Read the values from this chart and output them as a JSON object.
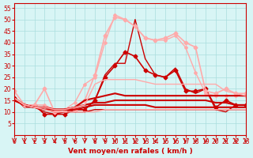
{
  "bg_color": "#d8f5f5",
  "grid_color": "#aadddd",
  "xlabel": "Vent moyen/en rafales ( km/h )",
  "xlabel_color": "#cc0000",
  "tick_color": "#cc0000",
  "xlim": [
    0,
    23
  ],
  "ylim": [
    0,
    57
  ],
  "yticks": [
    5,
    10,
    15,
    20,
    25,
    30,
    35,
    40,
    45,
    50,
    55
  ],
  "xticks": [
    0,
    1,
    2,
    3,
    4,
    5,
    6,
    7,
    8,
    9,
    10,
    11,
    12,
    13,
    14,
    15,
    16,
    17,
    18,
    19,
    20,
    21,
    22,
    23
  ],
  "lines": [
    {
      "x": [
        0,
        1,
        2,
        3,
        4,
        5,
        6,
        7,
        8,
        9,
        10,
        11,
        12,
        13,
        14,
        15,
        16,
        17,
        18,
        19,
        20,
        21,
        22,
        23
      ],
      "y": [
        16,
        13,
        13,
        9,
        9,
        9,
        11,
        11,
        15,
        25,
        30,
        36,
        34,
        28,
        26,
        25,
        28,
        19,
        19,
        20,
        12,
        15,
        13,
        13
      ],
      "color": "#cc0000",
      "lw": 1.2,
      "marker": "D",
      "ms": 2.5
    },
    {
      "x": [
        0,
        1,
        2,
        3,
        4,
        5,
        6,
        7,
        8,
        9,
        10,
        11,
        12,
        13,
        14,
        15,
        16,
        17,
        18,
        19,
        20,
        21,
        22,
        23
      ],
      "y": [
        16,
        12,
        12,
        10,
        9,
        10,
        11,
        11,
        15,
        26,
        31,
        31,
        50,
        33,
        26,
        25,
        29,
        20,
        18,
        20,
        11,
        10,
        13,
        13
      ],
      "color": "#cc0000",
      "lw": 1.0,
      "marker": null,
      "ms": 0
    },
    {
      "x": [
        0,
        1,
        2,
        3,
        4,
        5,
        6,
        7,
        8,
        9,
        10,
        11,
        12,
        13,
        14,
        15,
        16,
        17,
        18,
        19,
        20,
        21,
        22,
        23
      ],
      "y": [
        19,
        13,
        13,
        20,
        10,
        11,
        11,
        15,
        26,
        43,
        51,
        50,
        47,
        42,
        41,
        42,
        44,
        40,
        38,
        19,
        18,
        20,
        18,
        18
      ],
      "color": "#ffaaaa",
      "lw": 1.2,
      "marker": "D",
      "ms": 2.5
    },
    {
      "x": [
        0,
        1,
        2,
        3,
        4,
        5,
        6,
        7,
        8,
        9,
        10,
        11,
        12,
        13,
        14,
        15,
        16,
        17,
        18,
        19,
        20,
        21,
        22,
        23
      ],
      "y": [
        15,
        13,
        13,
        13,
        11,
        11,
        14,
        22,
        25,
        40,
        52,
        50,
        47,
        42,
        41,
        41,
        43,
        38,
        27,
        18,
        17,
        17,
        17,
        17
      ],
      "color": "#ffaaaa",
      "lw": 1.0,
      "marker": "D",
      "ms": 2.0
    },
    {
      "x": [
        0,
        1,
        2,
        3,
        4,
        5,
        6,
        7,
        8,
        9,
        10,
        11,
        12,
        13,
        14,
        15,
        16,
        17,
        18,
        19,
        20,
        21,
        22,
        23
      ],
      "y": [
        15,
        13,
        12,
        12,
        11,
        11,
        12,
        15,
        16,
        17,
        18,
        17,
        17,
        17,
        17,
        17,
        17,
        17,
        17,
        17,
        17,
        17,
        17,
        17
      ],
      "color": "#cc0000",
      "lw": 1.5,
      "marker": null,
      "ms": 0
    },
    {
      "x": [
        0,
        1,
        2,
        3,
        4,
        5,
        6,
        7,
        8,
        9,
        10,
        11,
        12,
        13,
        14,
        15,
        16,
        17,
        18,
        19,
        20,
        21,
        22,
        23
      ],
      "y": [
        15,
        13,
        12,
        12,
        11,
        11,
        12,
        13,
        14,
        14,
        15,
        15,
        15,
        15,
        15,
        15,
        15,
        15,
        15,
        15,
        14,
        14,
        13,
        13
      ],
      "color": "#cc0000",
      "lw": 1.5,
      "marker": null,
      "ms": 0
    },
    {
      "x": [
        0,
        1,
        2,
        3,
        4,
        5,
        6,
        7,
        8,
        9,
        10,
        11,
        12,
        13,
        14,
        15,
        16,
        17,
        18,
        19,
        20,
        21,
        22,
        23
      ],
      "y": [
        16,
        13,
        12,
        11,
        11,
        11,
        11,
        12,
        13,
        13,
        13,
        13,
        13,
        13,
        12,
        12,
        12,
        12,
        12,
        12,
        12,
        12,
        12,
        12
      ],
      "color": "#cc0000",
      "lw": 1.5,
      "marker": null,
      "ms": 0
    },
    {
      "x": [
        0,
        1,
        2,
        3,
        4,
        5,
        6,
        7,
        8,
        9,
        10,
        11,
        12,
        13,
        14,
        15,
        16,
        17,
        18,
        19,
        20,
        21,
        22,
        23
      ],
      "y": [
        15,
        13,
        12,
        11,
        10,
        10,
        10,
        10,
        11,
        11,
        11,
        11,
        11,
        11,
        11,
        11,
        11,
        11,
        11,
        11,
        11,
        11,
        11,
        11
      ],
      "color": "#cc0000",
      "lw": 1.0,
      "marker": null,
      "ms": 0
    },
    {
      "x": [
        0,
        1,
        2,
        3,
        4,
        5,
        6,
        7,
        8,
        9,
        10,
        11,
        12,
        13,
        14,
        15,
        16,
        17,
        18,
        19,
        20,
        21,
        22,
        23
      ],
      "y": [
        16,
        13,
        12,
        11,
        10,
        10,
        10,
        10,
        10,
        11,
        11,
        11,
        11,
        11,
        11,
        11,
        11,
        11,
        11,
        11,
        11,
        11,
        11,
        11
      ],
      "color": "#ffaaaa",
      "lw": 1.0,
      "marker": null,
      "ms": 0
    },
    {
      "x": [
        0,
        1,
        2,
        3,
        4,
        5,
        6,
        7,
        8,
        9,
        10,
        11,
        12,
        13,
        14,
        15,
        16,
        17,
        18,
        19,
        20,
        21,
        22,
        23
      ],
      "y": [
        16,
        13,
        12,
        12,
        11,
        11,
        12,
        13,
        22,
        24,
        24,
        24,
        24,
        23,
        22,
        22,
        22,
        22,
        22,
        22,
        22,
        19,
        18,
        17
      ],
      "color": "#ffaaaa",
      "lw": 1.0,
      "marker": null,
      "ms": 0
    }
  ],
  "arrow_color": "#cc0000"
}
